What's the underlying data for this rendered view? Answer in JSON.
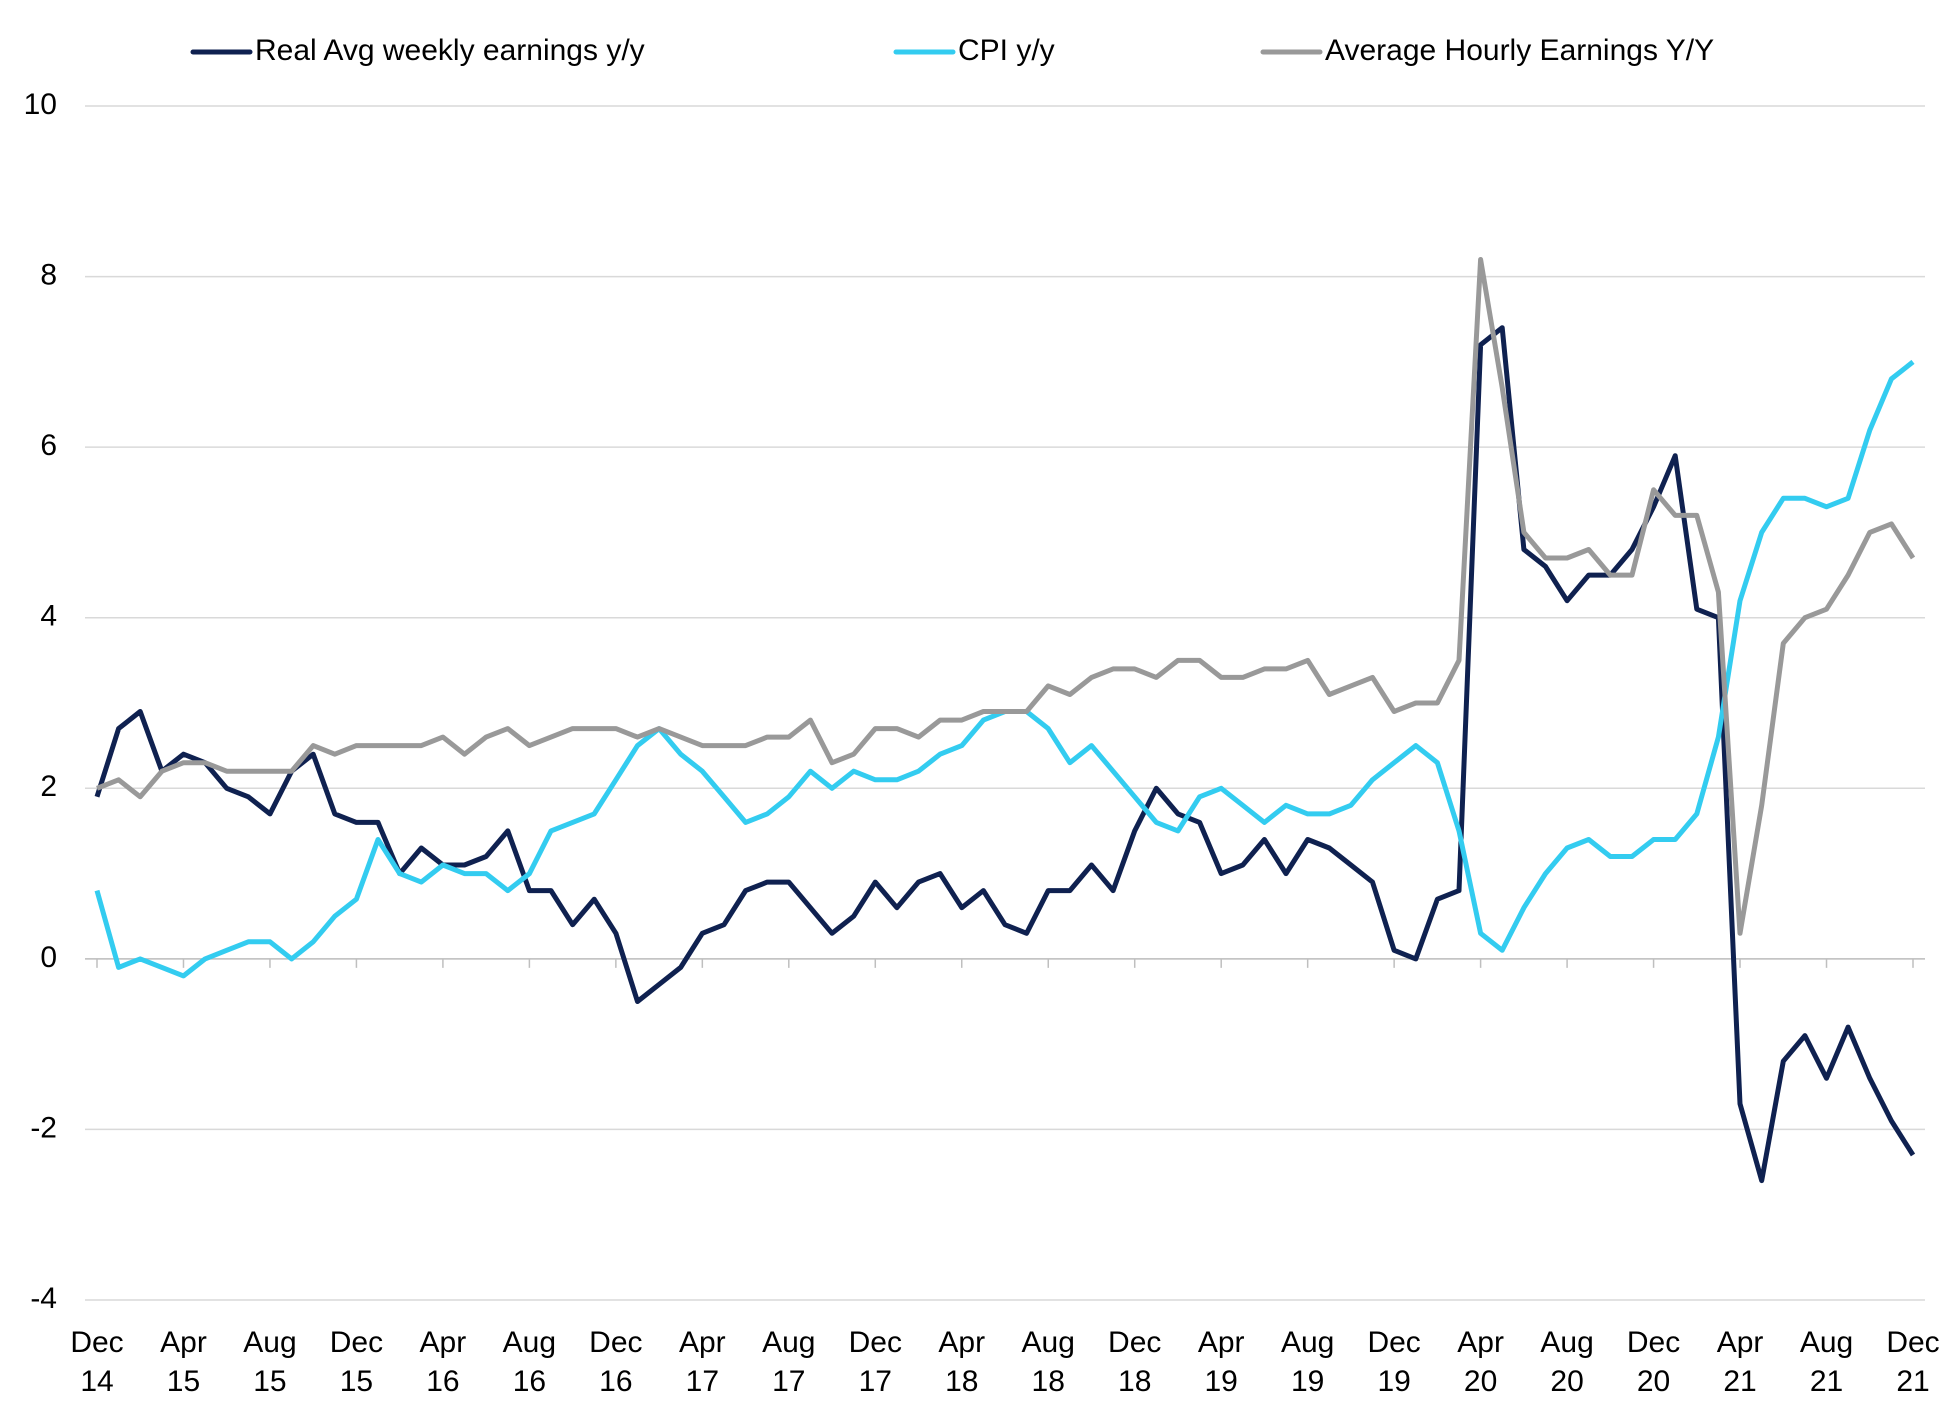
{
  "chart_data": {
    "type": "line",
    "categories": [
      "Dec 14",
      null,
      null,
      null,
      "Apr 15",
      null,
      null,
      null,
      "Aug 15",
      null,
      null,
      null,
      "Dec 15",
      null,
      null,
      null,
      "Apr 16",
      null,
      null,
      null,
      "Aug 16",
      null,
      null,
      null,
      "Dec 16",
      null,
      null,
      null,
      "Apr 17",
      null,
      null,
      null,
      "Aug 17",
      null,
      null,
      null,
      "Dec 17",
      null,
      null,
      null,
      "Apr 18",
      null,
      null,
      null,
      "Aug 18",
      null,
      null,
      null,
      "Dec 18",
      null,
      null,
      null,
      "Apr 19",
      null,
      null,
      null,
      "Aug 19",
      null,
      null,
      null,
      "Dec 19",
      null,
      null,
      null,
      "Apr 20",
      null,
      null,
      null,
      "Aug 20",
      null,
      null,
      null,
      "Dec 20",
      null,
      null,
      null,
      "Apr 21",
      null,
      null,
      null,
      "Aug 21",
      null,
      null,
      null,
      "Dec 21"
    ],
    "series": [
      {
        "name": "Real Avg weekly earnings y/y",
        "color": "#0f2150",
        "values": [
          1.9,
          2.7,
          2.9,
          2.2,
          2.4,
          2.3,
          2.0,
          1.9,
          1.7,
          2.2,
          2.4,
          1.7,
          1.6,
          1.6,
          1.0,
          1.3,
          1.1,
          1.1,
          1.2,
          1.5,
          0.8,
          0.8,
          0.4,
          0.7,
          0.3,
          -0.5,
          -0.3,
          -0.1,
          0.3,
          0.4,
          0.8,
          0.9,
          0.9,
          0.6,
          0.3,
          0.5,
          0.9,
          0.6,
          0.9,
          1.0,
          0.6,
          0.8,
          0.4,
          0.3,
          0.8,
          0.8,
          1.1,
          0.8,
          1.5,
          2.0,
          1.7,
          1.6,
          1.0,
          1.1,
          1.4,
          1.0,
          1.4,
          1.3,
          1.1,
          0.9,
          0.1,
          0.0,
          0.7,
          0.8,
          7.2,
          7.4,
          4.8,
          4.6,
          4.2,
          4.5,
          4.5,
          4.8,
          5.3,
          5.9,
          4.1,
          4.0,
          -1.7,
          -2.6,
          -1.2,
          -0.9,
          -1.4,
          -0.8,
          -1.4,
          -1.9,
          -2.3
        ]
      },
      {
        "name": "CPI y/y",
        "color": "#33ccf0",
        "values": [
          0.8,
          -0.1,
          0.0,
          -0.1,
          -0.2,
          0.0,
          0.1,
          0.2,
          0.2,
          0.0,
          0.2,
          0.5,
          0.7,
          1.4,
          1.0,
          0.9,
          1.1,
          1.0,
          1.0,
          0.8,
          1.0,
          1.5,
          1.6,
          1.7,
          2.1,
          2.5,
          2.7,
          2.4,
          2.2,
          1.9,
          1.6,
          1.7,
          1.9,
          2.2,
          2.0,
          2.2,
          2.1,
          2.1,
          2.2,
          2.4,
          2.5,
          2.8,
          2.9,
          2.9,
          2.7,
          2.3,
          2.5,
          2.2,
          1.9,
          1.6,
          1.5,
          1.9,
          2.0,
          1.8,
          1.6,
          1.8,
          1.7,
          1.7,
          1.8,
          2.1,
          2.3,
          2.5,
          2.3,
          1.5,
          0.3,
          0.1,
          0.6,
          1.0,
          1.3,
          1.4,
          1.2,
          1.2,
          1.4,
          1.4,
          1.7,
          2.6,
          4.2,
          5.0,
          5.4,
          5.4,
          5.3,
          5.4,
          6.2,
          6.8,
          7.0
        ]
      },
      {
        "name": "Average Hourly Earnings Y/Y",
        "color": "#999999",
        "values": [
          2.0,
          2.1,
          1.9,
          2.2,
          2.3,
          2.3,
          2.2,
          2.2,
          2.2,
          2.2,
          2.5,
          2.4,
          2.5,
          2.5,
          2.5,
          2.5,
          2.6,
          2.4,
          2.6,
          2.7,
          2.5,
          2.6,
          2.7,
          2.7,
          2.7,
          2.6,
          2.7,
          2.6,
          2.5,
          2.5,
          2.5,
          2.6,
          2.6,
          2.8,
          2.3,
          2.4,
          2.7,
          2.7,
          2.6,
          2.8,
          2.8,
          2.9,
          2.9,
          2.9,
          3.2,
          3.1,
          3.3,
          3.4,
          3.4,
          3.3,
          3.5,
          3.5,
          3.3,
          3.3,
          3.4,
          3.4,
          3.5,
          3.1,
          3.2,
          3.3,
          2.9,
          3.0,
          3.0,
          3.5,
          8.2,
          6.7,
          5.0,
          4.7,
          4.7,
          4.8,
          4.5,
          4.5,
          5.5,
          5.2,
          5.2,
          4.3,
          0.3,
          1.8,
          3.7,
          4.0,
          4.1,
          4.5,
          5.0,
          5.1,
          4.7
        ]
      }
    ],
    "ylim": [
      -4,
      10
    ],
    "yticks": [
      -4,
      -2,
      0,
      2,
      4,
      6,
      8,
      10
    ],
    "grid": true,
    "legend": "top"
  }
}
